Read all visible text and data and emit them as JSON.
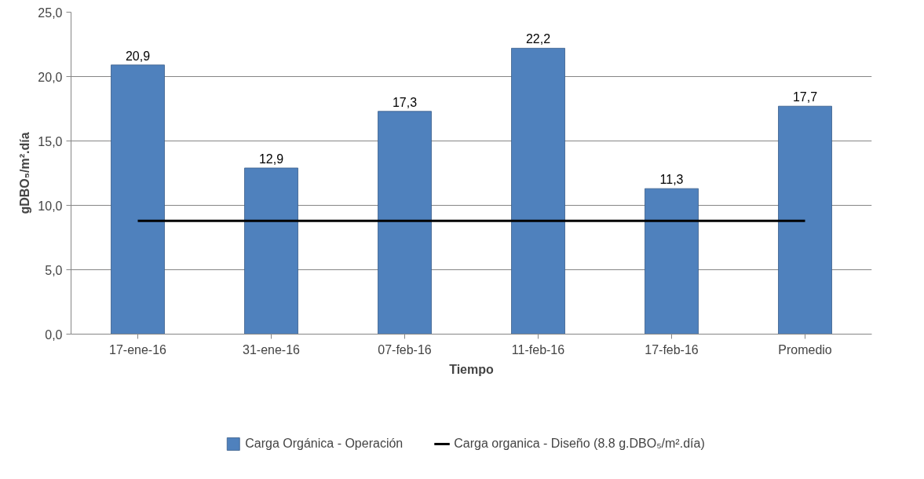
{
  "chart_data": {
    "type": "bar",
    "xlabel": "Tiempo",
    "ylabel": "gDBO₅/m².día",
    "categories": [
      "17-ene-16",
      "31-ene-16",
      "07-feb-16",
      "11-feb-16",
      "17-feb-16",
      "Promedio"
    ],
    "series": [
      {
        "name": "Carga Orgánica - Operación",
        "color": "#4f81bd",
        "values": [
          20.9,
          12.9,
          17.3,
          22.2,
          11.3,
          17.7
        ],
        "value_labels": [
          "20,9",
          "12,9",
          "17,3",
          "22,2",
          "11,3",
          "17,7"
        ]
      },
      {
        "name": "Carga organica - Diseño (8.8 g.DBO₅/m².día)",
        "type": "line",
        "color": "#000000",
        "values": [
          8.8,
          8.8,
          8.8,
          8.8,
          8.8,
          8.8
        ]
      }
    ],
    "ylim": [
      0,
      25
    ],
    "yticks": [
      {
        "value": 0,
        "label": "0,0"
      },
      {
        "value": 5,
        "label": "5,0"
      },
      {
        "value": 10,
        "label": "10,0"
      },
      {
        "value": 15,
        "label": "15,0"
      },
      {
        "value": 20,
        "label": "20,0"
      },
      {
        "value": 25,
        "label": "25,0"
      }
    ],
    "grid": "y",
    "legend": "bottom"
  }
}
